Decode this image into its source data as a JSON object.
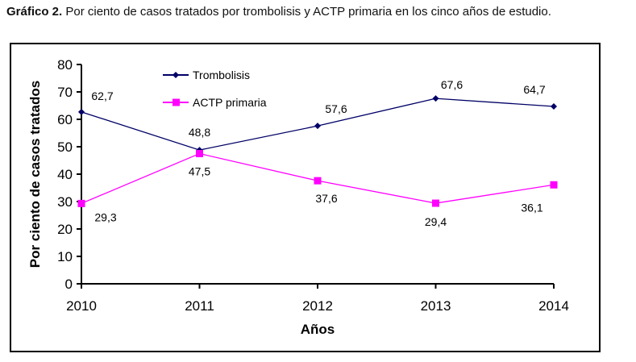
{
  "caption": {
    "prefix": "Gráfico 2.",
    "text": " Por ciento de casos tratados por trombolisis y ACTP primaria en los cinco años de estudio."
  },
  "chart_data": {
    "type": "line",
    "title": "Gráfico 2. Por ciento de casos tratados por trombolisis y ACTP primaria en los cinco años de estudio.",
    "xlabel": "Años",
    "ylabel": "Por ciento de casos tratados",
    "categories": [
      "2010",
      "2011",
      "2012",
      "2013",
      "2014"
    ],
    "ylim": [
      0,
      80
    ],
    "yticks": [
      0,
      10,
      20,
      30,
      40,
      50,
      60,
      70,
      80
    ],
    "grid": false,
    "legend_position": "top-left",
    "series": [
      {
        "name": "Trombolisis",
        "marker": "diamond",
        "color": "#000066",
        "values": [
          62.7,
          48.8,
          57.6,
          67.6,
          64.7
        ],
        "labels": [
          "62,7",
          "48,8",
          "57,6",
          "67,6",
          "64,7"
        ]
      },
      {
        "name": "ACTP primaria",
        "marker": "square",
        "color": "#ff00ff",
        "values": [
          29.3,
          47.5,
          37.6,
          29.4,
          36.1
        ],
        "labels": [
          "29,3",
          "47,5",
          "37,6",
          "29,4",
          "36,1"
        ]
      }
    ]
  }
}
